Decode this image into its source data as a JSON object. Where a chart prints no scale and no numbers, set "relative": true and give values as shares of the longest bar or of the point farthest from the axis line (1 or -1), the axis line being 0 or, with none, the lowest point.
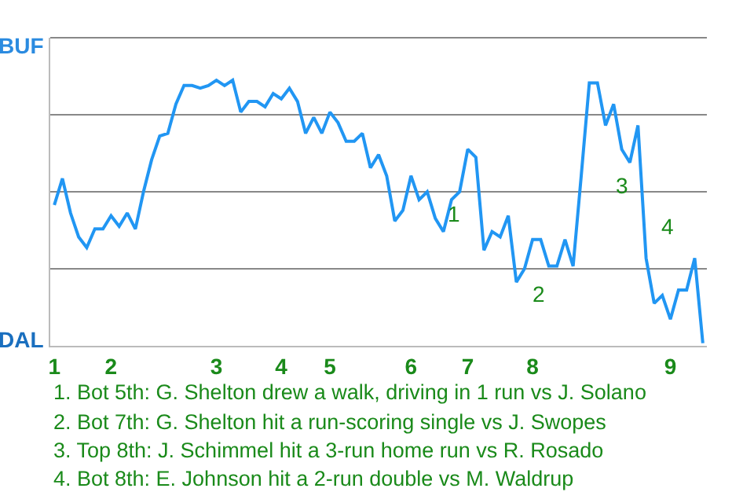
{
  "chart_data": {
    "type": "line",
    "relative": true,
    "categories": [
      "1",
      null,
      null,
      null,
      null,
      null,
      null,
      "2",
      null,
      null,
      null,
      null,
      null,
      null,
      null,
      null,
      null,
      null,
      null,
      null,
      "3",
      null,
      null,
      null,
      null,
      null,
      null,
      null,
      "4",
      null,
      null,
      null,
      null,
      null,
      "5",
      null,
      null,
      null,
      null,
      null,
      null,
      null,
      null,
      null,
      "6",
      null,
      null,
      null,
      null,
      null,
      null,
      "7",
      null,
      null,
      null,
      null,
      null,
      null,
      null,
      "8",
      null,
      null,
      null,
      null,
      null,
      null,
      null,
      null,
      null,
      null,
      null,
      null,
      null,
      null,
      null,
      null,
      "9",
      null,
      null,
      null,
      null
    ],
    "series": [
      {
        "color": "#2196f3",
        "values": [
          0.53,
          0.63,
          0.5,
          0.41,
          0.37,
          0.44,
          0.44,
          0.49,
          0.45,
          0.5,
          0.44,
          0.58,
          0.7,
          0.79,
          0.8,
          0.91,
          0.98,
          0.98,
          0.97,
          0.98,
          1,
          0.98,
          1,
          0.88,
          0.92,
          0.92,
          0.9,
          0.95,
          0.93,
          0.97,
          0.92,
          0.8,
          0.86,
          0.8,
          0.88,
          0.84,
          0.77,
          0.77,
          0.8,
          0.67,
          0.72,
          0.64,
          0.47,
          0.51,
          0.64,
          0.55,
          0.58,
          0.48,
          0.43,
          0.55,
          0.58,
          0.74,
          0.71,
          0.36,
          0.43,
          0.41,
          0.49,
          0.24,
          0.29,
          0.4,
          0.4,
          0.3,
          0.3,
          0.4,
          0.3,
          0.64,
          0.99,
          0.99,
          0.83,
          0.91,
          0.74,
          0.69,
          0.83,
          0.33,
          0.16,
          0.19,
          0.1,
          0.21,
          0.21,
          0.33,
          0.01
        ]
      }
    ],
    "grid": "y",
    "marker": "none",
    "line_style": "solid",
    "annotations": [
      "1",
      "2",
      "3",
      "4",
      "BUF",
      "DAL",
      "1. Bot 5th: G. Shelton drew a walk, driving in 1 run vs J. Solano",
      "2. Bot 7th: G. Shelton hit a run-scoring single vs J. Swopes",
      "3. Top 8th: J. Schimmel hit a 3-run home run vs R. Rosado",
      "4. Bot 8th: E. Johnson hit a 2-run double vs M. Waldrup"
    ]
  }
}
